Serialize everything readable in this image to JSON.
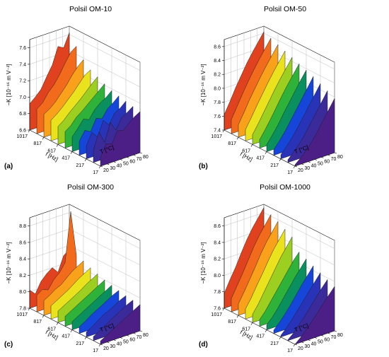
{
  "chart_data": [
    {
      "type": "area",
      "panel": "(a)",
      "title": "Polsil OM-10",
      "zlabel": "−K [10⁻¹⁶ m V⁻²]",
      "flabel": "f [Hz]",
      "tlabel": "T [°C]",
      "zlim": [
        6.6,
        7.7
      ],
      "zticks": [
        "6.6",
        "6.8",
        "7.0",
        "7.2",
        "7.4",
        "7.6"
      ],
      "fticks": [
        "1017",
        "817",
        "617",
        "417",
        "217",
        "17"
      ],
      "tticks": [
        "20",
        "30",
        "40",
        "50",
        "60",
        "70",
        "80"
      ],
      "series": [
        {
          "f": 1017,
          "color": "#e0411f",
          "values": [
            6.92,
            6.98,
            7.05,
            7.18,
            7.3,
            7.5,
            7.46,
            7.62
          ]
        },
        {
          "f": 917,
          "color": "#f26b1d",
          "values": [
            6.9,
            6.95,
            7.05,
            7.12,
            7.22,
            7.34,
            7.45,
            7.5
          ]
        },
        {
          "f": 817,
          "color": "#f9a11b",
          "values": [
            6.88,
            6.92,
            6.98,
            7.06,
            7.14,
            7.24,
            7.32,
            7.38
          ]
        },
        {
          "f": 717,
          "color": "#e9e21d",
          "values": [
            6.85,
            6.9,
            6.96,
            7.03,
            7.1,
            7.18,
            7.26,
            7.3
          ]
        },
        {
          "f": 617,
          "color": "#9ccf1f",
          "values": [
            6.82,
            6.87,
            6.94,
            7.0,
            7.06,
            7.13,
            7.2,
            7.26
          ]
        },
        {
          "f": 517,
          "color": "#2fb23a",
          "values": [
            6.8,
            6.85,
            6.93,
            6.98,
            7.04,
            7.1,
            7.16,
            7.22
          ]
        },
        {
          "f": 417,
          "color": "#0a8f5e",
          "values": [
            6.78,
            6.86,
            6.95,
            6.92,
            7.02,
            7.08,
            7.12,
            7.18
          ]
        },
        {
          "f": 317,
          "color": "#1646d9",
          "values": [
            6.77,
            6.88,
            6.84,
            6.98,
            6.95,
            7.05,
            7.1,
            7.16
          ]
        },
        {
          "f": 217,
          "color": "#2833b8",
          "values": [
            6.76,
            6.9,
            6.82,
            7.0,
            6.92,
            7.04,
            7.08,
            7.14
          ]
        },
        {
          "f": 117,
          "color": "#3a2a9a",
          "values": [
            6.75,
            6.95,
            6.8,
            7.02,
            6.9,
            7.03,
            7.07,
            7.12
          ]
        },
        {
          "f": 17,
          "color": "#4b1f86",
          "values": [
            6.7,
            6.85,
            6.82,
            6.96,
            6.94,
            7.0,
            7.06,
            7.1
          ]
        }
      ]
    },
    {
      "type": "area",
      "panel": "(b)",
      "title": "Polsil OM-50",
      "zlabel": "−K [10⁻¹⁶ m V⁻²]",
      "flabel": "f [Hz]",
      "tlabel": "T [°C]",
      "zlim": [
        7.4,
        8.7
      ],
      "zticks": [
        "7.4",
        "7.6",
        "7.8",
        "8.0",
        "8.2",
        "8.4",
        "8.6"
      ],
      "fticks": [
        "1017",
        "817",
        "617",
        "417",
        "217",
        "17"
      ],
      "tticks": [
        "20",
        "30",
        "40",
        "50",
        "60",
        "70",
        "80"
      ],
      "series": [
        {
          "f": 1017,
          "color": "#e0411f",
          "values": [
            7.62,
            7.78,
            7.95,
            8.1,
            8.25,
            8.38,
            8.5,
            8.62
          ]
        },
        {
          "f": 917,
          "color": "#f26b1d",
          "values": [
            7.6,
            7.76,
            7.92,
            8.07,
            8.21,
            8.34,
            8.46,
            8.58
          ]
        },
        {
          "f": 817,
          "color": "#f9a11b",
          "values": [
            7.58,
            7.73,
            7.89,
            8.03,
            8.17,
            8.3,
            8.42,
            8.54
          ]
        },
        {
          "f": 717,
          "color": "#e9e21d",
          "values": [
            7.56,
            7.7,
            7.85,
            7.99,
            8.13,
            8.26,
            8.38,
            8.5
          ]
        },
        {
          "f": 617,
          "color": "#9ccf1f",
          "values": [
            7.54,
            7.67,
            7.81,
            7.95,
            8.09,
            8.22,
            8.34,
            8.46
          ]
        },
        {
          "f": 517,
          "color": "#2fb23a",
          "values": [
            7.52,
            7.64,
            7.77,
            7.91,
            8.05,
            8.18,
            8.3,
            8.42
          ]
        },
        {
          "f": 417,
          "color": "#0a8f5e",
          "values": [
            7.5,
            7.61,
            7.73,
            7.87,
            8.0,
            8.13,
            8.26,
            8.38
          ]
        },
        {
          "f": 317,
          "color": "#1646d9",
          "values": [
            7.48,
            7.58,
            7.69,
            7.82,
            7.95,
            8.08,
            8.21,
            8.34
          ]
        },
        {
          "f": 217,
          "color": "#2833b8",
          "values": [
            7.46,
            7.55,
            7.65,
            7.77,
            7.9,
            8.03,
            8.16,
            8.29
          ]
        },
        {
          "f": 117,
          "color": "#3a2a9a",
          "values": [
            7.44,
            7.52,
            7.61,
            7.72,
            7.85,
            7.98,
            8.11,
            8.24
          ]
        },
        {
          "f": 17,
          "color": "#4b1f86",
          "values": [
            7.42,
            7.49,
            7.57,
            7.67,
            7.79,
            7.92,
            8.05,
            8.18
          ]
        }
      ]
    },
    {
      "type": "area",
      "panel": "(c)",
      "title": "Polsil OM-300",
      "zlabel": "−K [10⁻¹⁶ m V⁻²]",
      "flabel": "f [Hz]",
      "tlabel": "T [°C]",
      "zlim": [
        7.8,
        8.9
      ],
      "zticks": [
        "7.8",
        "8.0",
        "8.2",
        "8.4",
        "8.6",
        "8.8"
      ],
      "fticks": [
        "1017",
        "817",
        "617",
        "417",
        "217",
        "17"
      ],
      "tticks": [
        "20",
        "30",
        "40",
        "50",
        "60",
        "70",
        "80"
      ],
      "series": [
        {
          "f": 1017,
          "color": "#e0411f",
          "values": [
            8.02,
            7.95,
            8.08,
            8.15,
            8.2,
            8.12,
            8.3,
            8.35
          ]
        },
        {
          "f": 917,
          "color": "#f26b1d",
          "values": [
            8.0,
            8.05,
            8.02,
            8.12,
            8.18,
            8.28,
            8.88,
            8.32
          ]
        },
        {
          "f": 817,
          "color": "#f9a11b",
          "values": [
            7.98,
            8.02,
            8.07,
            8.1,
            8.16,
            8.22,
            8.26,
            8.3
          ]
        },
        {
          "f": 717,
          "color": "#e9e21d",
          "values": [
            7.96,
            8.0,
            8.04,
            8.08,
            8.13,
            8.18,
            8.22,
            8.26
          ]
        },
        {
          "f": 617,
          "color": "#9ccf1f",
          "values": [
            7.94,
            7.98,
            8.02,
            8.06,
            8.1,
            8.15,
            8.19,
            8.23
          ]
        },
        {
          "f": 517,
          "color": "#2fb23a",
          "values": [
            7.92,
            7.96,
            8.0,
            8.04,
            8.08,
            8.12,
            8.16,
            8.2
          ]
        },
        {
          "f": 417,
          "color": "#0a8f5e",
          "values": [
            7.9,
            7.94,
            7.98,
            8.02,
            8.06,
            8.1,
            8.14,
            8.18
          ]
        },
        {
          "f": 317,
          "color": "#1646d9",
          "values": [
            7.88,
            7.92,
            7.97,
            8.01,
            8.05,
            8.09,
            8.13,
            8.16
          ]
        },
        {
          "f": 217,
          "color": "#2833b8",
          "values": [
            7.86,
            7.9,
            7.95,
            8.0,
            8.03,
            8.07,
            8.11,
            8.14
          ]
        },
        {
          "f": 117,
          "color": "#3a2a9a",
          "values": [
            7.85,
            7.89,
            7.93,
            7.98,
            8.02,
            8.06,
            8.1,
            8.13
          ]
        },
        {
          "f": 17,
          "color": "#4b1f86",
          "values": [
            7.84,
            7.88,
            7.92,
            7.96,
            8.0,
            8.04,
            8.08,
            8.12
          ]
        }
      ]
    },
    {
      "type": "area",
      "panel": "(d)",
      "title": "Polsil OM-1000",
      "zlabel": "−K [10⁻¹⁶ m V⁻²]",
      "flabel": "f [Hz]",
      "tlabel": "T [°C]",
      "zlim": [
        7.6,
        8.7
      ],
      "zticks": [
        "7.6",
        "7.8",
        "8.0",
        "8.2",
        "8.4",
        "8.6"
      ],
      "fticks": [
        "1017",
        "817",
        "617",
        "417",
        "217",
        "17"
      ],
      "tticks": [
        "20",
        "30",
        "40",
        "50",
        "60",
        "70",
        "80"
      ],
      "series": [
        {
          "f": 1017,
          "color": "#e0411f",
          "values": [
            7.78,
            7.92,
            8.05,
            8.2,
            8.34,
            8.46,
            8.56,
            8.66
          ]
        },
        {
          "f": 917,
          "color": "#f26b1d",
          "values": [
            7.76,
            7.89,
            8.02,
            8.16,
            8.3,
            8.42,
            8.52,
            8.62
          ]
        },
        {
          "f": 817,
          "color": "#f9a11b",
          "values": [
            7.74,
            7.86,
            7.99,
            8.12,
            8.26,
            8.38,
            8.48,
            8.58
          ]
        },
        {
          "f": 717,
          "color": "#e9e21d",
          "values": [
            7.72,
            7.83,
            7.96,
            8.08,
            8.21,
            8.33,
            8.43,
            8.53
          ]
        },
        {
          "f": 617,
          "color": "#9ccf1f",
          "values": [
            7.7,
            7.8,
            7.92,
            8.04,
            8.16,
            8.28,
            8.38,
            8.48
          ]
        },
        {
          "f": 517,
          "color": "#2fb23a",
          "values": [
            7.68,
            7.76,
            7.86,
            7.96,
            8.06,
            8.16,
            8.26,
            8.34
          ]
        },
        {
          "f": 417,
          "color": "#0a8f5e",
          "values": [
            7.66,
            7.73,
            7.82,
            7.92,
            8.02,
            8.12,
            8.21,
            8.3
          ]
        },
        {
          "f": 317,
          "color": "#1646d9",
          "values": [
            7.64,
            7.71,
            7.79,
            7.88,
            7.98,
            8.08,
            8.17,
            8.26
          ]
        },
        {
          "f": 217,
          "color": "#2833b8",
          "values": [
            7.62,
            7.69,
            7.77,
            7.86,
            7.95,
            8.04,
            8.13,
            8.22
          ]
        },
        {
          "f": 117,
          "color": "#3a2a9a",
          "values": [
            7.61,
            7.67,
            7.75,
            7.83,
            7.92,
            8.01,
            8.1,
            8.18
          ]
        },
        {
          "f": 17,
          "color": "#4b1f86",
          "values": [
            7.6,
            7.66,
            7.73,
            7.81,
            7.89,
            7.98,
            8.06,
            8.14
          ]
        }
      ]
    }
  ]
}
